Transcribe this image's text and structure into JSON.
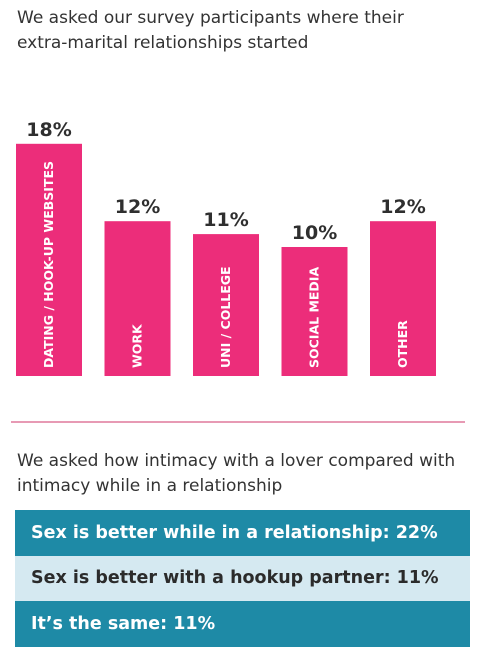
{
  "section1": {
    "intro": "We asked our survey participants where their extra-marital relationships started"
  },
  "chart_data": {
    "type": "bar",
    "categories": [
      "DATING / HOOK-UP WEBSITES",
      "WORK",
      "UNI / COLLEGE",
      "SOCIAL MEDIA",
      "OTHER"
    ],
    "values": [
      18,
      12,
      11,
      10,
      12
    ],
    "value_labels": [
      "18%",
      "12%",
      "11%",
      "10%",
      "12%"
    ],
    "title": "",
    "xlabel": "",
    "ylabel": "",
    "ylim": [
      0,
      18
    ],
    "grid": false,
    "legend": "none",
    "bar_color": "#ec2d7a"
  },
  "section2": {
    "intro": "We asked how intimacy with a lover compared with intimacy while in a relationship",
    "results": [
      "Sex is better while in a relationship: 22%",
      "Sex is better with a hookup partner: 11%",
      "It’s the same: 11%"
    ]
  },
  "colors": {
    "accent_pink": "#ec2d7a",
    "divider_pink": "#e79ab4",
    "row_teal": "#1e8aa6",
    "row_light": "#d5e9f1"
  }
}
